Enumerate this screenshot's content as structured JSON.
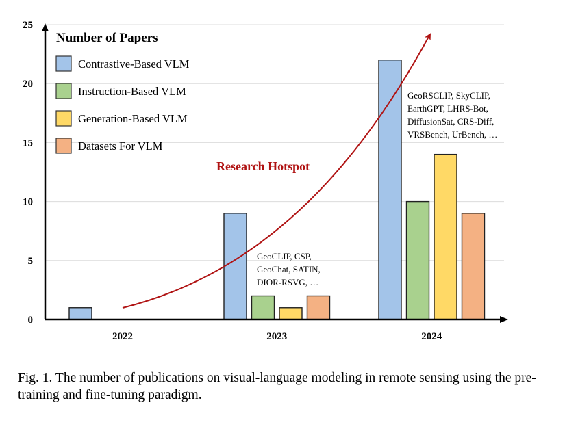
{
  "chart_data": {
    "type": "bar",
    "categories": [
      "2022",
      "2023",
      "2024"
    ],
    "series": [
      {
        "name": "Contrastive-Based VLM",
        "color": "#a3c4e9",
        "values": [
          1,
          9,
          22
        ]
      },
      {
        "name": "Instruction-Based VLM",
        "color": "#a9d18e",
        "values": [
          0,
          2,
          10
        ]
      },
      {
        "name": "Generation-Based VLM",
        "color": "#ffd966",
        "values": [
          0,
          1,
          14
        ]
      },
      {
        "name": "Datasets For VLM",
        "color": "#f4b183",
        "values": [
          0,
          2,
          9
        ]
      }
    ],
    "title": "",
    "legend_title": "Number of Papers",
    "legend_position": "top-left",
    "ylim": [
      0,
      25
    ],
    "yticks": [
      0,
      5,
      10,
      15,
      20,
      25
    ],
    "grid": true,
    "annotations": [
      {
        "category": "2023",
        "lines": [
          "GeoCLIP, CSP,",
          "GeoChat, SATIN,",
          "DIOR-RSVG, …"
        ]
      },
      {
        "category": "2024",
        "lines": [
          "GeoRSCLIP, SkyCLIP,",
          "EarthGPT, LHRS-Bot,",
          "DiffusionSat, CRS-Diff,",
          "VRSBench, UrBench, …"
        ]
      }
    ],
    "trend_label": "Research Hotspot",
    "trend_color": "#b01313"
  },
  "caption": "Fig. 1.  The number of publications on visual-language modeling in remote sensing using the pre-training and fine-tuning paradigm."
}
